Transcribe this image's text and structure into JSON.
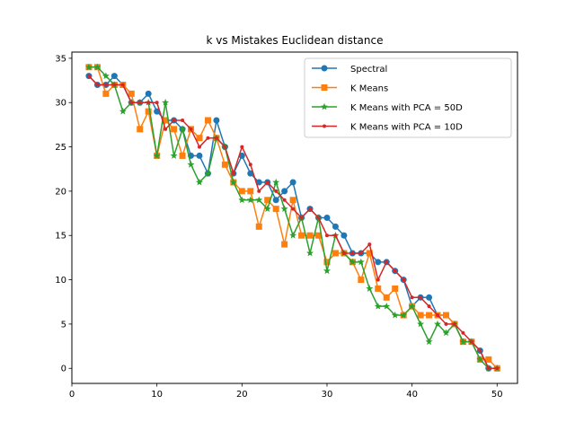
{
  "chart_data": {
    "type": "line",
    "title": "k vs Mistakes Euclidean distance",
    "xlabel": "",
    "ylabel": "",
    "xlim": [
      0,
      52.4
    ],
    "ylim": [
      -1.7,
      35.7
    ],
    "xticks": [
      0,
      10,
      20,
      30,
      40,
      50
    ],
    "yticks": [
      0,
      5,
      10,
      15,
      20,
      25,
      30,
      35
    ],
    "grid": false,
    "legend_position": "top-right",
    "x": [
      2,
      3,
      4,
      5,
      6,
      7,
      8,
      9,
      10,
      11,
      12,
      13,
      14,
      15,
      16,
      17,
      18,
      19,
      20,
      21,
      22,
      23,
      24,
      25,
      26,
      27,
      28,
      29,
      30,
      31,
      32,
      33,
      34,
      35,
      36,
      37,
      38,
      39,
      40,
      41,
      42,
      43,
      44,
      45,
      46,
      47,
      48,
      49,
      50
    ],
    "series": [
      {
        "name": "Spectral",
        "color": "#1f77b4",
        "marker": "circle",
        "values": [
          33,
          32,
          32,
          33,
          32,
          30,
          30,
          31,
          29,
          28,
          28,
          27,
          24,
          24,
          22,
          28,
          25,
          22,
          24,
          22,
          21,
          21,
          19,
          20,
          21,
          17,
          18,
          17,
          17,
          16,
          15,
          13,
          13,
          13,
          12,
          12,
          11,
          10,
          7,
          8,
          8,
          6,
          6,
          5,
          3,
          3,
          2,
          0,
          0
        ]
      },
      {
        "name": "K Means",
        "color": "#ff7f0e",
        "marker": "square",
        "values": [
          34,
          34,
          31,
          32,
          32,
          31,
          27,
          29,
          24,
          28,
          27,
          24,
          27,
          26,
          28,
          26,
          23,
          21,
          20,
          20,
          16,
          19,
          18,
          14,
          19,
          15,
          15,
          15,
          12,
          13,
          13,
          12,
          10,
          13,
          9,
          8,
          9,
          6,
          7,
          6,
          6,
          6,
          6,
          5,
          3,
          3,
          1,
          1,
          0
        ]
      },
      {
        "name": "K Means with PCA = 50D",
        "color": "#2ca02c",
        "marker": "star",
        "values": [
          34,
          34,
          33,
          32,
          29,
          30,
          30,
          30,
          24,
          30,
          24,
          27,
          23,
          21,
          22,
          26,
          25,
          21,
          19,
          19,
          19,
          18,
          21,
          18,
          15,
          17,
          13,
          17,
          11,
          15,
          13,
          12,
          12,
          9,
          7,
          7,
          6,
          6,
          7,
          5,
          3,
          5,
          4,
          5,
          3,
          3,
          1,
          0,
          0
        ]
      },
      {
        "name": "K Means with PCA = 10D",
        "color": "#d62728",
        "marker": "dot",
        "values": [
          33,
          32,
          32,
          32,
          32,
          30,
          30,
          30,
          30,
          27,
          28,
          28,
          27,
          25,
          26,
          26,
          25,
          22,
          25,
          23,
          20,
          21,
          20,
          19,
          18,
          17,
          18,
          17,
          15,
          15,
          13,
          13,
          13,
          14,
          10,
          12,
          11,
          10,
          8,
          8,
          7,
          6,
          5,
          5,
          4,
          3,
          2,
          0,
          0
        ]
      }
    ]
  }
}
